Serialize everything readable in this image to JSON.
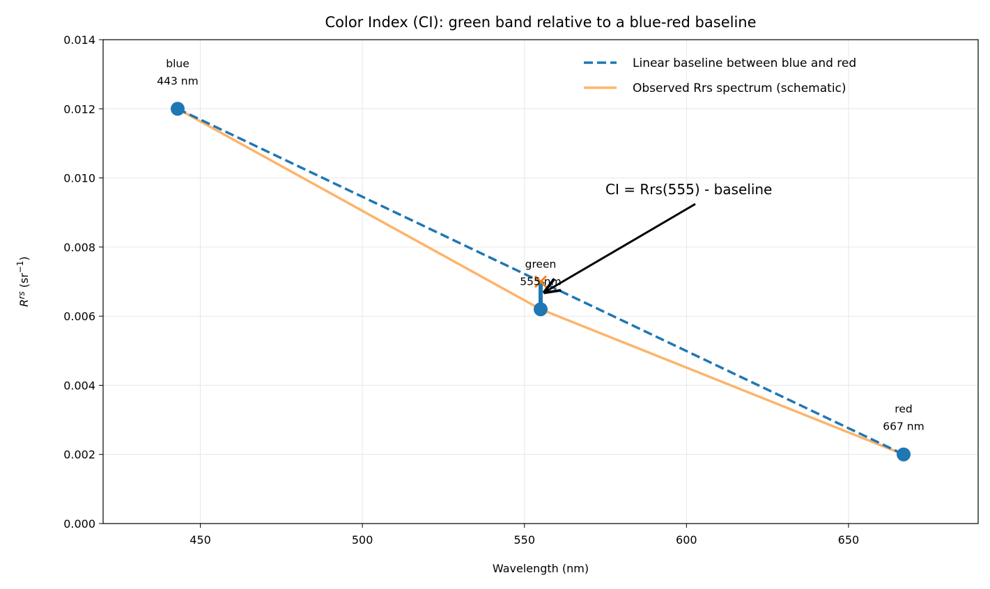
{
  "chart_data": {
    "type": "line",
    "title": "Color Index (CI): green band relative to a blue-red baseline",
    "x_label": "Wavelength (nm)",
    "y_label": [
      "R",
      "rs",
      " (sr",
      "−1",
      ")"
    ],
    "xlim": [
      420,
      690
    ],
    "ylim": [
      0,
      0.014
    ],
    "xticks": [
      450,
      500,
      550,
      600,
      650
    ],
    "yticks": [
      {
        "value": 0,
        "label": "0.000"
      },
      0.002,
      0.004,
      0.006,
      0.008,
      {
        "value": 0.01,
        "label": "0.010"
      },
      0.012,
      0.014
    ],
    "grid": true,
    "legend": "upper right",
    "series": [
      {
        "name": "Linear baseline between blue and red",
        "color": "#1f77b4",
        "dashed": true,
        "x": [
          443,
          667
        ],
        "values": [
          0.012,
          0.002
        ]
      },
      {
        "name": "Observed Rrs spectrum (schematic)",
        "color": "#fdb46b",
        "dashed": false,
        "x": [
          443,
          555,
          667
        ],
        "values": [
          0.012,
          0.0062,
          0.002
        ]
      }
    ],
    "markers": {
      "color": "#1f77b4",
      "x": [
        443,
        555,
        667
      ],
      "values": [
        0.012,
        0.0062,
        0.002
      ]
    },
    "cross": {
      "color": "#ff7f0e",
      "x": 555,
      "value": 0.007
    },
    "point_labels": [
      [
        "blue",
        "443 nm"
      ],
      [
        "green",
        "555 nm"
      ],
      [
        "red",
        "667 nm"
      ]
    ],
    "annotation": "CI = Rrs(555) - baseline"
  }
}
